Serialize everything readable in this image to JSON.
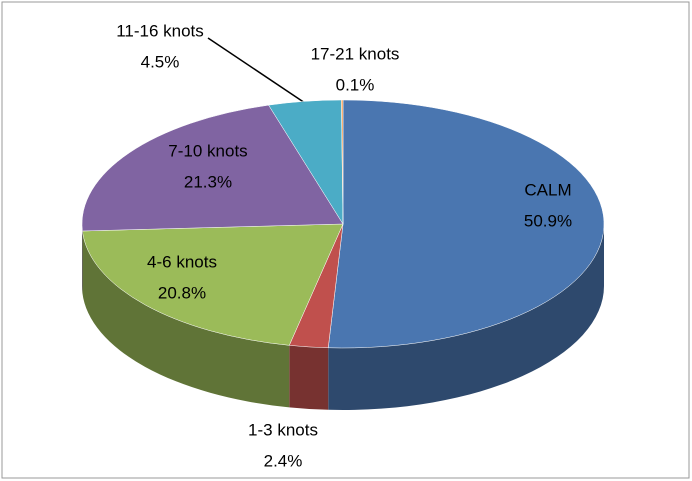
{
  "chart_data": {
    "type": "pie3d",
    "categories": [
      "CALM",
      "1-3 knots",
      "4-6 knots",
      "7-10 knots",
      "11-16 knots",
      "17-21 knots"
    ],
    "values": [
      50.9,
      2.4,
      20.8,
      21.3,
      4.5,
      0.1
    ],
    "value_labels": [
      "50.9%",
      "2.4%",
      "20.8%",
      "21.3%",
      "4.5%",
      "0.1%"
    ],
    "colors": [
      "#4a76b0",
      "#c0504d",
      "#9bbb59",
      "#8064a2",
      "#4bacc6",
      "#f79646"
    ]
  }
}
